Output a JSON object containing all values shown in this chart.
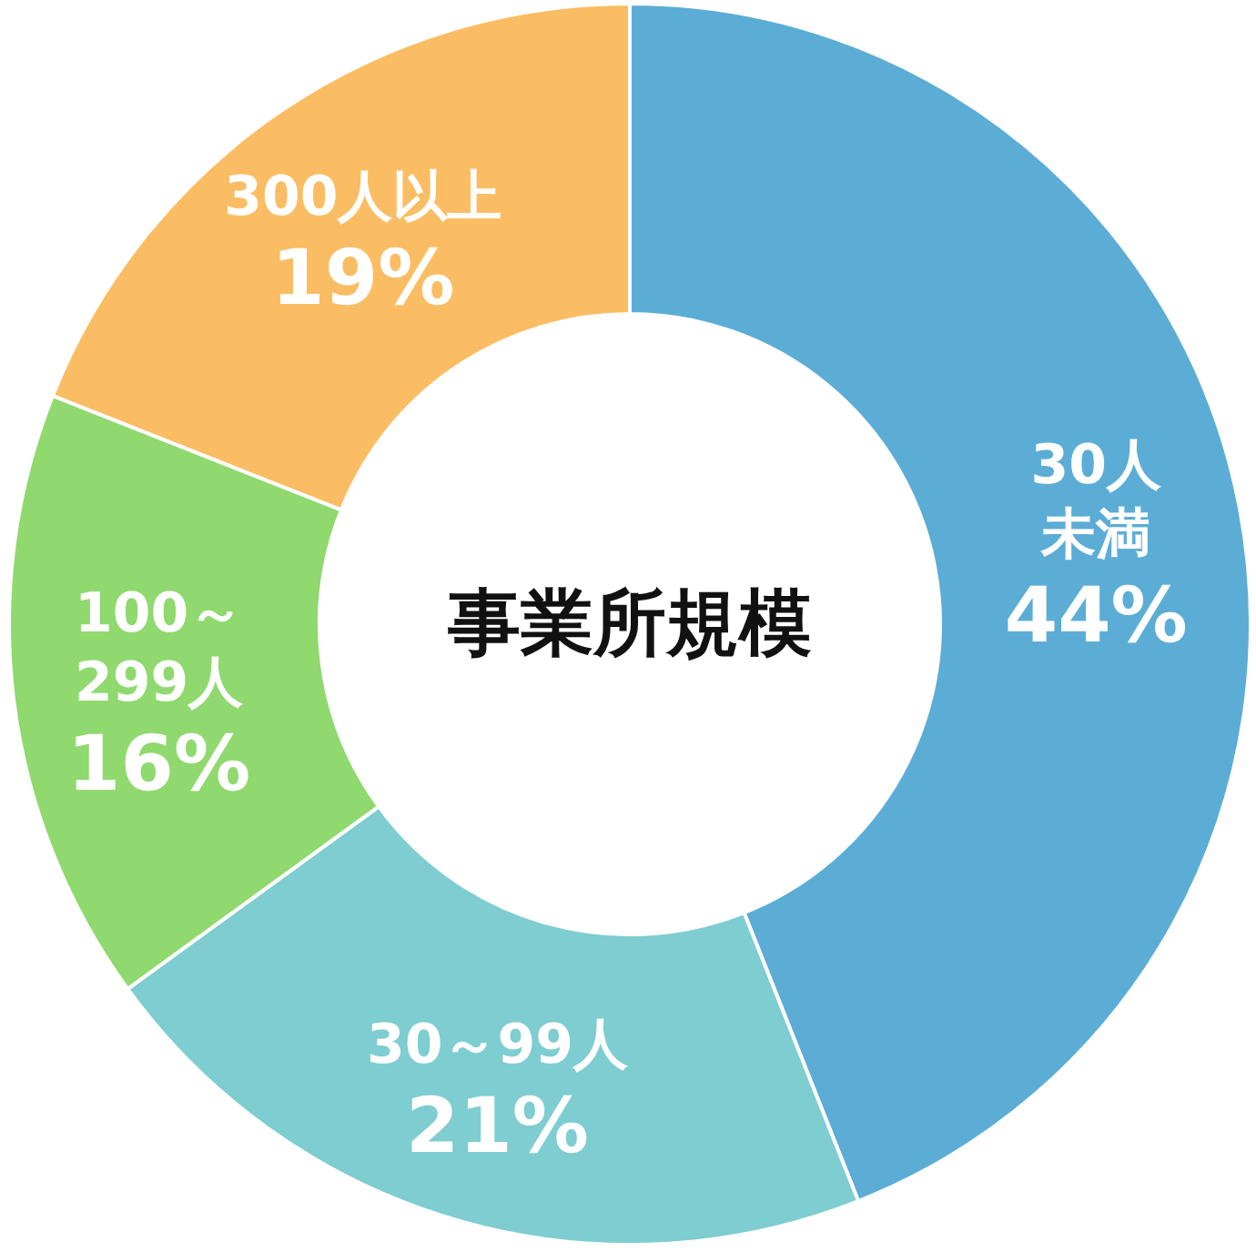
{
  "chart_data": {
    "type": "donut",
    "title": "事業所規模",
    "categories": [
      "30人未満",
      "30～99人",
      "100～299人",
      "300人以上"
    ],
    "values": [
      44,
      21,
      16,
      19
    ],
    "value_labels": [
      "44%",
      "21%",
      "16%",
      "19%"
    ],
    "colors": [
      "#5badd6",
      "#7ecdd0",
      "#8fd96f",
      "#fbbd63"
    ]
  }
}
